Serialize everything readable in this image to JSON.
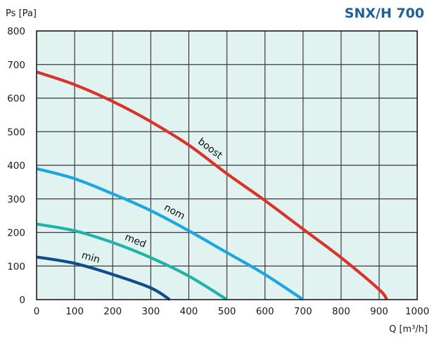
{
  "chart_data": {
    "type": "line",
    "title": "SNX/H 700",
    "ylabel_main": "Ps",
    "ylabel_unit": "[Pa]",
    "xlabel": "Q [m³/h]",
    "xlim": [
      0,
      1000
    ],
    "ylim": [
      0,
      800
    ],
    "x_ticks": [
      "0",
      "100",
      "200",
      "300",
      "400",
      "500",
      "600",
      "700",
      "800",
      "900",
      "1000"
    ],
    "y_ticks": [
      "0",
      "100",
      "200",
      "300",
      "400",
      "500",
      "600",
      "700",
      "800"
    ],
    "grid": true,
    "colors": {
      "plot_background": "#e0f3f1",
      "grid": "#3a3a3a",
      "title": "#1f5f9a"
    },
    "series": [
      {
        "name": "boost",
        "color": "#d9342b",
        "x": [
          0,
          100,
          200,
          300,
          400,
          500,
          600,
          700,
          800,
          900,
          920
        ],
        "y": [
          678,
          640,
          590,
          530,
          460,
          375,
          295,
          210,
          125,
          30,
          0
        ]
      },
      {
        "name": "nom",
        "color": "#1fa5e0",
        "x": [
          0,
          100,
          200,
          300,
          400,
          500,
          600,
          700
        ],
        "y": [
          390,
          360,
          315,
          265,
          205,
          140,
          75,
          0
        ]
      },
      {
        "name": "med",
        "color": "#21b3a6",
        "x": [
          0,
          100,
          200,
          300,
          400,
          500
        ],
        "y": [
          225,
          205,
          170,
          125,
          70,
          0
        ]
      },
      {
        "name": "min",
        "color": "#114b8c",
        "x": [
          0,
          100,
          200,
          300,
          350
        ],
        "y": [
          127,
          108,
          75,
          35,
          0
        ]
      }
    ]
  }
}
